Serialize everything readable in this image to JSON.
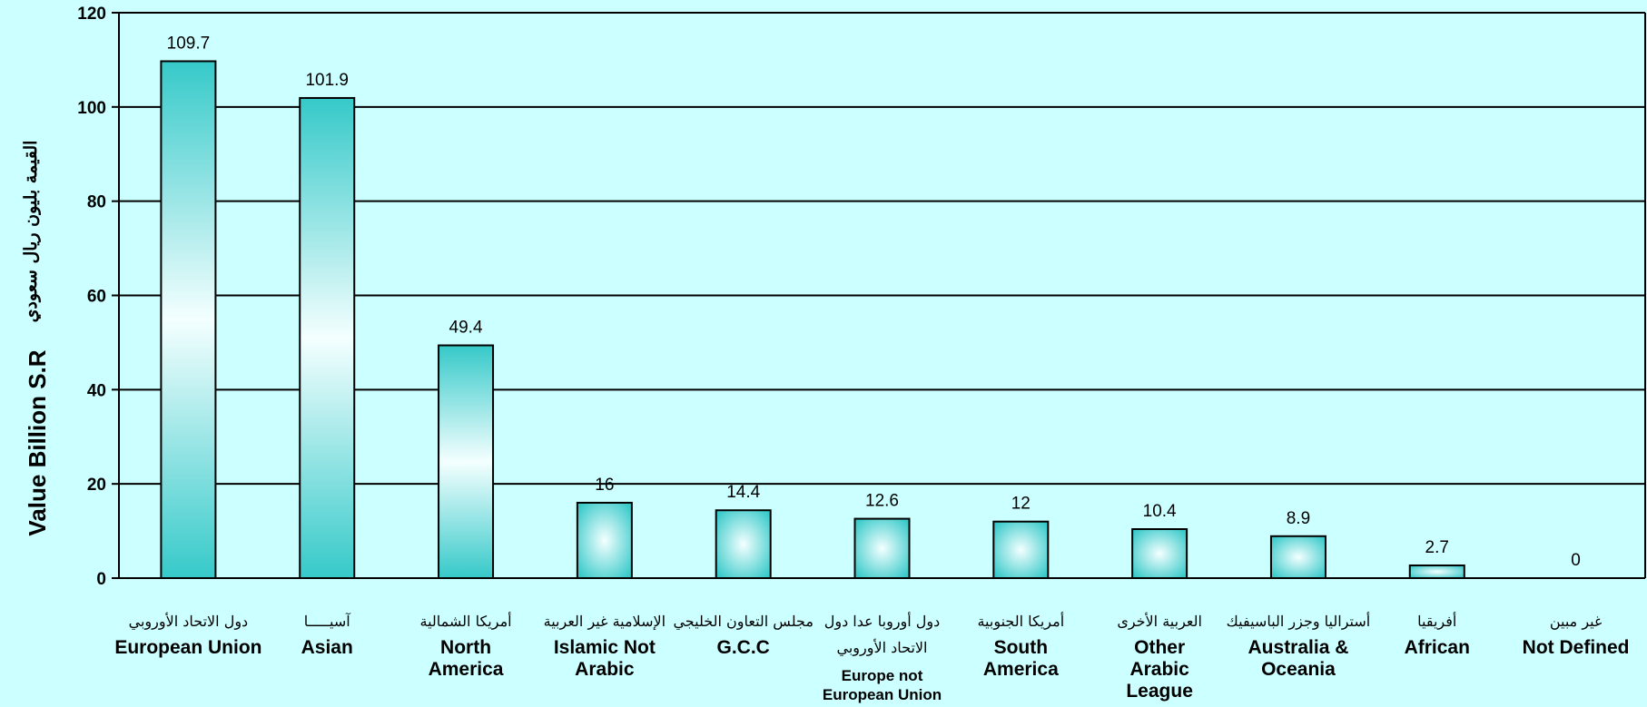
{
  "chart_data": {
    "type": "bar",
    "categories": [
      {
        "en": [
          "European Union"
        ],
        "ar": [
          "دول الاتحاد الأوروبي"
        ]
      },
      {
        "en": [
          "Asian"
        ],
        "ar": [
          "آسيـــــا"
        ]
      },
      {
        "en": [
          "North",
          "America"
        ],
        "ar": [
          "أمريكا الشمالية"
        ]
      },
      {
        "en": [
          "Islamic Not",
          "Arabic"
        ],
        "ar": [
          "الإسلامية غير العربية"
        ]
      },
      {
        "en": [
          "G.C.C"
        ],
        "ar": [
          "مجلس التعاون الخليجي"
        ]
      },
      {
        "en": [
          "Europe not",
          "European Union"
        ],
        "ar": [
          "دول أوروبا عدا دول",
          "الاتحاد الأوروبي"
        ],
        "small": true
      },
      {
        "en": [
          "South",
          "America"
        ],
        "ar": [
          "أمريكا الجنوبية"
        ]
      },
      {
        "en": [
          "Other",
          "Arabic",
          "League"
        ],
        "ar": [
          "العربية الأخرى"
        ]
      },
      {
        "en": [
          "Australia &",
          "Oceania"
        ],
        "ar": [
          "أستراليا وجزر الباسيفيك"
        ]
      },
      {
        "en": [
          "African"
        ],
        "ar": [
          "أفريقيا"
        ]
      },
      {
        "en": [
          "Not Defined"
        ],
        "ar": [
          "غير مبين"
        ]
      }
    ],
    "values": [
      109.7,
      101.9,
      49.4,
      16,
      14.4,
      12.6,
      12,
      10.4,
      8.9,
      2.7,
      0
    ],
    "value_labels": [
      "109.7",
      "101.9",
      "49.4",
      "16",
      "14.4",
      "12.6",
      "12",
      "10.4",
      "8.9",
      "2.7",
      "0"
    ],
    "ylim": [
      0,
      120
    ],
    "yticks": [
      0,
      20,
      40,
      60,
      80,
      100,
      120
    ],
    "ylabel": "Value Billion S.R",
    "ylabel_ar": "القيمة بليون ريال سعودي",
    "grid": true,
    "colors": {
      "background": "#ccffff",
      "bar_edge": "#36c9c9",
      "bar_center": "#f4ffff",
      "gridline": "#000000"
    }
  }
}
